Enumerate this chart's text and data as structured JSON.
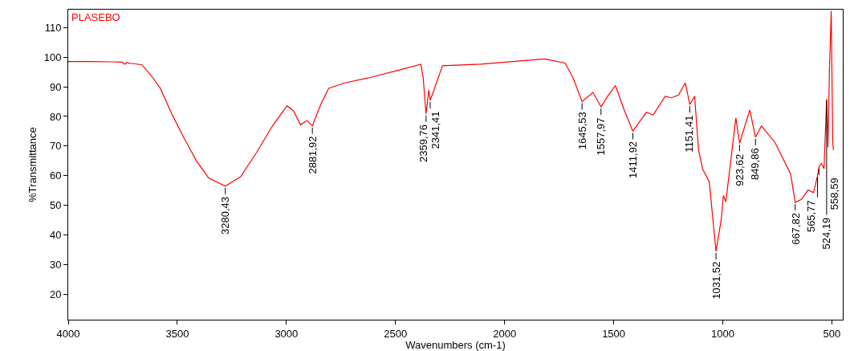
{
  "chart_data": {
    "type": "line",
    "xlabel": "Wavenumbers (cm-1)",
    "ylabel": "%Transmittance",
    "xlim": [
      4000,
      450
    ],
    "ylim": [
      11.5,
      116
    ],
    "xticks": [
      4000,
      3500,
      3000,
      2500,
      2000,
      1500,
      1000,
      500
    ],
    "yticks": [
      20,
      30,
      40,
      50,
      60,
      70,
      80,
      90,
      100,
      110
    ],
    "grid": false,
    "legend": false,
    "series": [
      {
        "name": "PLASEBO",
        "color": "#ff0000",
        "x": [
          4000,
          3900,
          3800,
          3754,
          3740,
          3730,
          3720,
          3700,
          3662,
          3622,
          3578,
          3523,
          3467,
          3412,
          3357,
          3280,
          3210,
          3137,
          3064,
          2997,
          2968,
          2935,
          2906,
          2881,
          2843,
          2806,
          2733,
          2623,
          2476,
          2384,
          2373,
          2360,
          2347,
          2341,
          2325,
          2285,
          2109,
          1962,
          1815,
          1723,
          1686,
          1645,
          1595,
          1558,
          1528,
          1492,
          1448,
          1412,
          1382,
          1350,
          1319,
          1264,
          1235,
          1203,
          1172,
          1151,
          1129,
          1111,
          1093,
          1062,
          1031,
          1007,
          997,
          986,
          940,
          923,
          876,
          850,
          823,
          762,
          689,
          668,
          640,
          609,
          584,
          566,
          559,
          548,
          536,
          524,
          518,
          511,
          503,
          496,
          493
        ],
        "values": [
          98.5,
          98.5,
          98.4,
          98.3,
          97.6,
          98.2,
          97.9,
          97.8,
          97.4,
          94.0,
          89.5,
          80.5,
          72.4,
          65.0,
          59.3,
          56.5,
          59.7,
          67.8,
          76.8,
          83.6,
          81.9,
          77.2,
          78.6,
          76.8,
          84.0,
          89.5,
          91.3,
          93.0,
          95.8,
          97.6,
          93.0,
          80.9,
          89.0,
          85.4,
          88.6,
          97.1,
          97.6,
          98.5,
          99.4,
          98.0,
          93.0,
          85.0,
          88.1,
          83.2,
          86.8,
          90.4,
          81.4,
          75.0,
          78.2,
          81.4,
          80.5,
          86.8,
          86.3,
          87.2,
          91.3,
          84.0,
          86.8,
          68.7,
          62.4,
          58.0,
          34.5,
          45.3,
          53.4,
          51.2,
          79.5,
          71.0,
          82.2,
          73.0,
          76.8,
          71.4,
          60.6,
          51.0,
          52.0,
          55.2,
          54.3,
          60.0,
          63.0,
          64.2,
          62.4,
          85.9,
          69.6,
          95.8,
          115.6,
          71.4,
          68.7
        ]
      }
    ],
    "annotations": [
      {
        "text": "3280,43",
        "x": 3280,
        "y": 56.5
      },
      {
        "text": "2881,92",
        "x": 2881,
        "y": 76.8
      },
      {
        "text": "2359,76",
        "x": 2360,
        "y": 80.9
      },
      {
        "text": "2341,41",
        "x": 2341,
        "y": 85.4
      },
      {
        "text": "1645,53",
        "x": 1645,
        "y": 85.0
      },
      {
        "text": "1557,97",
        "x": 1558,
        "y": 83.2
      },
      {
        "text": "1411,92",
        "x": 1412,
        "y": 75.0
      },
      {
        "text": "1151,41",
        "x": 1151,
        "y": 84.0
      },
      {
        "text": "1031,52",
        "x": 1031,
        "y": 34.5
      },
      {
        "text": "923,62",
        "x": 923,
        "y": 71.0
      },
      {
        "text": "849,86",
        "x": 850,
        "y": 73.0
      },
      {
        "text": "667,82",
        "x": 668,
        "y": 51.0
      },
      {
        "text": "565,77",
        "x": 566,
        "y": 60.0
      },
      {
        "text": "558,59",
        "x": 559,
        "y": 63.0
      },
      {
        "text": "524,19",
        "x": 524,
        "y": 85.9
      }
    ]
  }
}
